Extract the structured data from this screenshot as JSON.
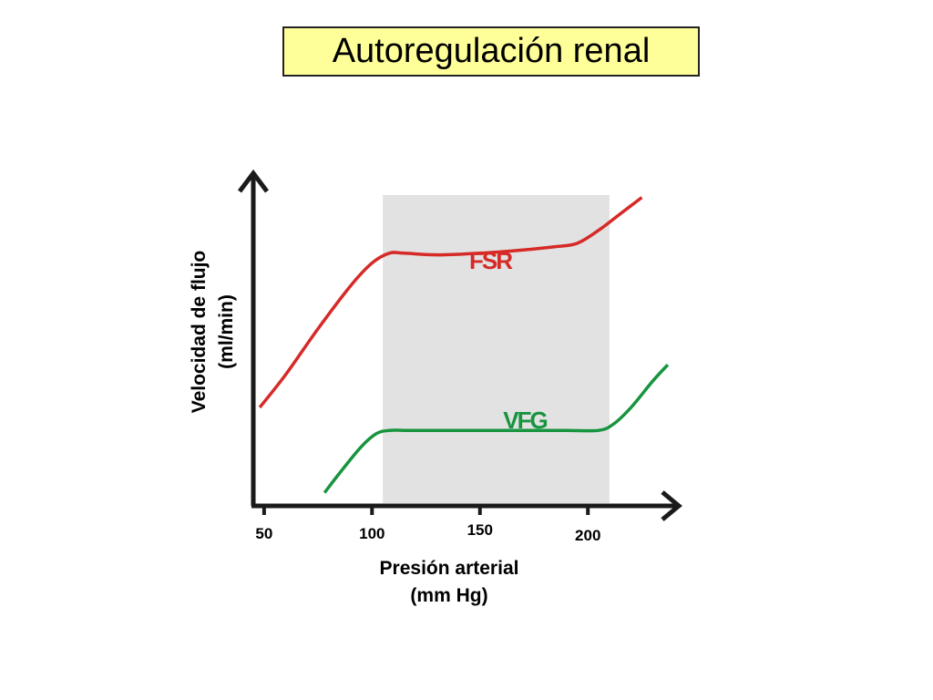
{
  "title": "Autoregulación renal",
  "chart_data": {
    "type": "line",
    "title": "Autoregulación renal",
    "xlabel": "Presión arterial",
    "xlabel_unit": "(mm Hg)",
    "ylabel": "Velocidad de flujo",
    "ylabel_unit": "(ml/min)",
    "x_ticks": [
      50,
      100,
      150,
      200
    ],
    "xlim": [
      45,
      240
    ],
    "ylim": [
      0,
      100
    ],
    "y_ticks_shown": false,
    "shaded_region": {
      "x_range": [
        105,
        210
      ],
      "color": "#e2e2e2"
    },
    "series": [
      {
        "name": "FSR",
        "color": "#d62a27",
        "x": [
          48,
          60,
          75,
          90,
          100,
          108,
          115,
          130,
          150,
          170,
          185,
          195,
          205,
          215,
          225
        ],
        "y": [
          30,
          40,
          54,
          67,
          74,
          77,
          77,
          76.5,
          77,
          78,
          79,
          80,
          84,
          89,
          94
        ]
      },
      {
        "name": "VFG",
        "color": "#17943e",
        "x": [
          78,
          85,
          95,
          102,
          108,
          115,
          130,
          150,
          170,
          190,
          205,
          212,
          220,
          230,
          237
        ],
        "y": [
          4,
          10,
          18,
          22,
          23,
          23,
          23,
          23,
          23,
          23,
          23,
          25,
          30,
          38,
          43
        ]
      }
    ]
  }
}
